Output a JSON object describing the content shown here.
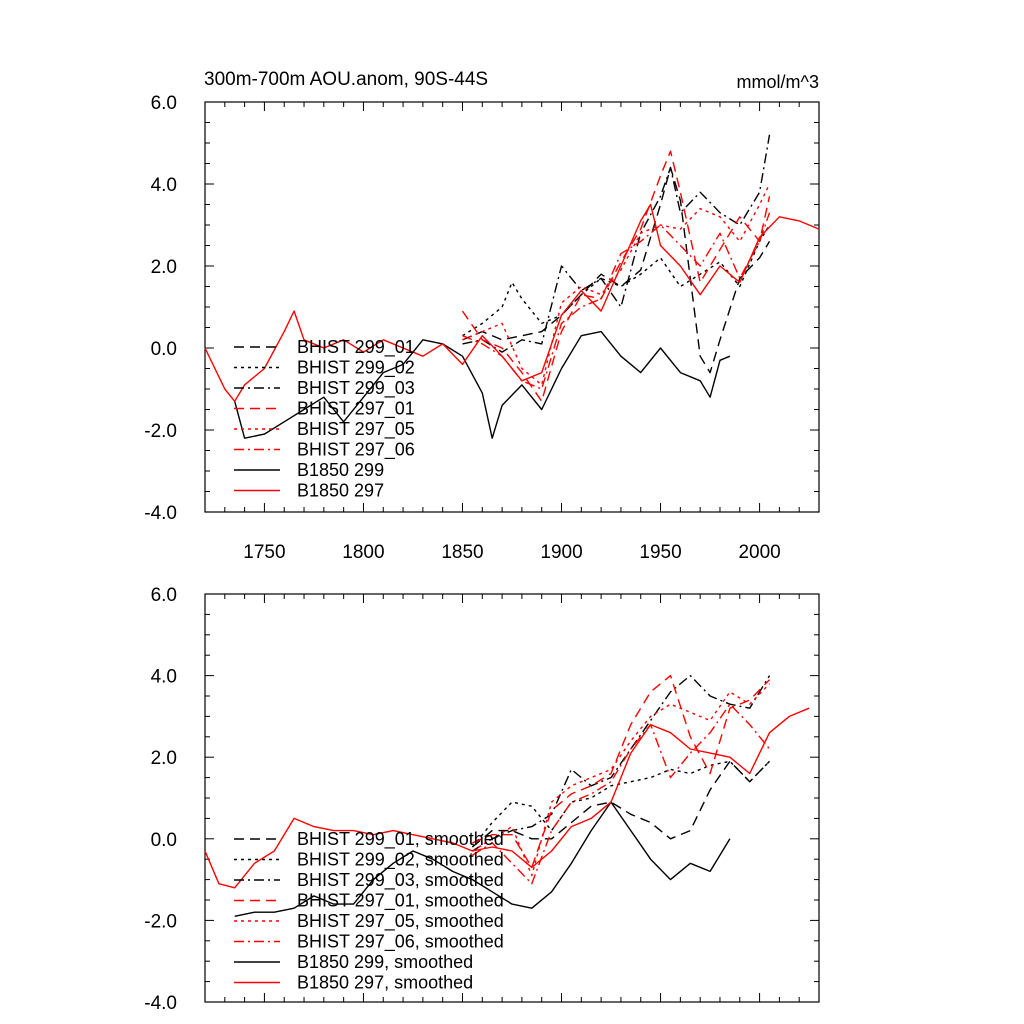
{
  "chart_data": [
    {
      "type": "line",
      "title": "300m-700m AOU.anom, 90S-44S",
      "units_label": "mmol/m^3",
      "xlim": [
        1720,
        2030
      ],
      "ylim": [
        -4,
        6
      ],
      "x_ticks": [
        1750,
        1800,
        1850,
        1900,
        1950,
        2000
      ],
      "x_tick_labels": [
        "1750",
        "1800",
        "1850",
        "1900",
        "1950",
        "2000"
      ],
      "y_ticks": [
        -4,
        -2,
        0,
        2,
        4,
        6
      ],
      "y_tick_labels": [
        "-4.0",
        "-2.0",
        "0.0",
        "2.0",
        "4.0",
        "6.0"
      ],
      "legend_position": "bottom-left",
      "grid": false,
      "series": [
        {
          "name": "BHIST 299_01",
          "color": "#000000",
          "dash": "long-dash",
          "x": [
            1850,
            1860,
            1870,
            1880,
            1890,
            1900,
            1910,
            1920,
            1930,
            1940,
            1950,
            1955,
            1960,
            1970,
            1975,
            1980,
            1990,
            2000,
            2005
          ],
          "y": [
            0.2,
            0.4,
            0.2,
            0.3,
            0.4,
            0.8,
            1.3,
            1.8,
            1.5,
            1.9,
            3.5,
            4.4,
            3.6,
            -0.2,
            -0.6,
            0.2,
            1.7,
            2.2,
            2.6
          ]
        },
        {
          "name": "BHIST 299_02",
          "color": "#000000",
          "dash": "dot",
          "x": [
            1850,
            1860,
            1870,
            1875,
            1880,
            1890,
            1900,
            1910,
            1920,
            1930,
            1940,
            1950,
            1960,
            1970,
            1980,
            1990,
            2000,
            2005
          ],
          "y": [
            0.3,
            0.6,
            1.0,
            1.6,
            1.2,
            0.6,
            0.8,
            1.3,
            1.7,
            1.5,
            1.8,
            2.2,
            1.5,
            1.8,
            2.1,
            1.5,
            2.6,
            3.0
          ]
        },
        {
          "name": "BHIST 299_03",
          "color": "#000000",
          "dash": "dash-dot",
          "x": [
            1850,
            1860,
            1870,
            1880,
            1890,
            1900,
            1910,
            1920,
            1930,
            1940,
            1950,
            1955,
            1960,
            1970,
            1980,
            1990,
            2000,
            2005
          ],
          "y": [
            0.1,
            0.2,
            -0.1,
            0.2,
            0.1,
            2.0,
            1.4,
            1.7,
            1.0,
            2.8,
            3.7,
            4.4,
            3.3,
            3.8,
            3.3,
            3.0,
            3.8,
            5.2
          ]
        },
        {
          "name": "BHIST 297_01",
          "color": "#ff0000",
          "dash": "long-dash",
          "x": [
            1850,
            1860,
            1870,
            1880,
            1890,
            1900,
            1910,
            1920,
            1930,
            1940,
            1950,
            1955,
            1960,
            1970,
            1980,
            1990,
            2000,
            2005
          ],
          "y": [
            0.9,
            0.2,
            0.0,
            -0.6,
            -1.3,
            0.4,
            1.3,
            1.2,
            2.1,
            2.9,
            4.2,
            4.8,
            3.8,
            1.6,
            2.4,
            3.2,
            2.6,
            3.7
          ]
        },
        {
          "name": "BHIST 297_05",
          "color": "#ff0000",
          "dash": "dot",
          "x": [
            1850,
            1860,
            1870,
            1880,
            1890,
            1900,
            1910,
            1920,
            1930,
            1940,
            1950,
            1960,
            1970,
            1980,
            1990,
            2000,
            2005
          ],
          "y": [
            0.2,
            0.4,
            0.6,
            -0.5,
            -0.9,
            1.1,
            1.5,
            1.3,
            1.9,
            2.8,
            3.0,
            2.9,
            3.4,
            3.2,
            2.6,
            3.5,
            4.0
          ]
        },
        {
          "name": "BHIST 297_06",
          "color": "#ff0000",
          "dash": "dash-dot",
          "x": [
            1850,
            1860,
            1870,
            1880,
            1890,
            1900,
            1910,
            1920,
            1930,
            1940,
            1950,
            1960,
            1970,
            1980,
            1990,
            2000,
            2005
          ],
          "y": [
            0.3,
            0.1,
            -0.2,
            -0.8,
            -1.0,
            0.6,
            1.0,
            1.2,
            2.3,
            2.6,
            3.0,
            2.5,
            2.0,
            2.8,
            1.7,
            2.6,
            3.3
          ]
        },
        {
          "name": "B1850 299",
          "color": "#000000",
          "dash": "solid",
          "x": [
            1735,
            1740,
            1750,
            1760,
            1770,
            1780,
            1790,
            1800,
            1810,
            1820,
            1830,
            1840,
            1850,
            1860,
            1865,
            1870,
            1880,
            1890,
            1900,
            1910,
            1920,
            1930,
            1940,
            1950,
            1960,
            1970,
            1975,
            1980,
            1985
          ],
          "y": [
            -1.3,
            -2.2,
            -2.1,
            -1.8,
            -1.5,
            -1.2,
            -1.8,
            -1.2,
            -0.6,
            -0.4,
            0.2,
            0.1,
            -0.2,
            -1.1,
            -2.2,
            -1.4,
            -0.9,
            -1.5,
            -0.5,
            0.3,
            0.4,
            -0.2,
            -0.6,
            0.0,
            -0.6,
            -0.8,
            -1.2,
            -0.3,
            -0.2
          ]
        },
        {
          "name": "B1850 297",
          "color": "#ff0000",
          "dash": "solid",
          "x": [
            1720,
            1730,
            1735,
            1740,
            1750,
            1760,
            1765,
            1770,
            1780,
            1790,
            1800,
            1810,
            1820,
            1830,
            1840,
            1850,
            1860,
            1870,
            1880,
            1890,
            1900,
            1910,
            1920,
            1930,
            1940,
            1945,
            1950,
            1960,
            1970,
            1980,
            1990,
            2000,
            2010,
            2020,
            2030
          ],
          "y": [
            0.0,
            -1.0,
            -1.3,
            -0.9,
            -0.5,
            0.4,
            0.9,
            0.2,
            0.0,
            0.2,
            -0.1,
            0.2,
            0.0,
            -0.2,
            0.1,
            -0.4,
            0.3,
            -0.2,
            -0.8,
            -0.6,
            0.8,
            1.4,
            0.9,
            2.0,
            3.1,
            3.5,
            2.5,
            2.0,
            1.3,
            2.0,
            1.6,
            2.7,
            3.2,
            3.1,
            2.9
          ]
        }
      ]
    },
    {
      "type": "line",
      "xlim": [
        1720,
        2030
      ],
      "ylim": [
        -4,
        6
      ],
      "y_ticks": [
        -4,
        -2,
        0,
        2,
        4,
        6
      ],
      "y_tick_labels": [
        "-4.0",
        "-2.0",
        "0.0",
        "2.0",
        "4.0",
        "6.0"
      ],
      "legend_position": "bottom-left",
      "grid": false,
      "series": [
        {
          "name": "BHIST 299_01, smoothed",
          "color": "#000000",
          "dash": "long-dash",
          "x": [
            1855,
            1865,
            1875,
            1885,
            1895,
            1905,
            1915,
            1925,
            1935,
            1945,
            1955,
            1965,
            1975,
            1985,
            1995,
            2005
          ],
          "y": [
            -0.2,
            0.2,
            0.2,
            0.0,
            0.0,
            0.4,
            0.8,
            0.9,
            0.6,
            0.4,
            0.0,
            0.2,
            1.2,
            1.9,
            1.4,
            1.9
          ]
        },
        {
          "name": "BHIST 299_02, smoothed",
          "color": "#000000",
          "dash": "dot",
          "x": [
            1855,
            1865,
            1875,
            1885,
            1895,
            1905,
            1915,
            1925,
            1935,
            1945,
            1955,
            1965,
            1975,
            1985,
            1995,
            2005
          ],
          "y": [
            -0.2,
            0.4,
            0.9,
            0.8,
            0.2,
            0.9,
            1.0,
            1.3,
            1.4,
            1.5,
            1.7,
            1.6,
            1.8,
            1.9,
            1.4,
            1.9
          ]
        },
        {
          "name": "BHIST 299_03, smoothed",
          "color": "#000000",
          "dash": "dash-dot",
          "x": [
            1855,
            1865,
            1875,
            1885,
            1895,
            1905,
            1915,
            1925,
            1935,
            1945,
            1955,
            1965,
            1975,
            1985,
            1995,
            2005
          ],
          "y": [
            -0.3,
            0.0,
            0.2,
            0.3,
            0.6,
            1.7,
            1.3,
            1.5,
            2.2,
            2.9,
            3.6,
            4.0,
            3.5,
            3.3,
            3.2,
            4.0
          ]
        },
        {
          "name": "BHIST 297_01, smoothed",
          "color": "#ff0000",
          "dash": "long-dash",
          "x": [
            1855,
            1865,
            1875,
            1885,
            1895,
            1905,
            1915,
            1925,
            1935,
            1945,
            1955,
            1965,
            1975,
            1985,
            1995,
            2005
          ],
          "y": [
            -0.1,
            0.1,
            0.1,
            -0.7,
            0.7,
            1.1,
            1.3,
            1.6,
            2.8,
            3.6,
            4.0,
            2.5,
            1.6,
            3.2,
            3.4,
            3.9
          ]
        },
        {
          "name": "BHIST 297_05, smoothed",
          "color": "#ff0000",
          "dash": "dot",
          "x": [
            1855,
            1865,
            1875,
            1885,
            1895,
            1905,
            1915,
            1925,
            1935,
            1945,
            1955,
            1965,
            1975,
            1985,
            1995,
            2005
          ],
          "y": [
            -0.3,
            0.0,
            0.3,
            -0.9,
            0.9,
            1.3,
            1.5,
            1.7,
            2.4,
            3.0,
            3.3,
            3.1,
            2.9,
            3.6,
            3.3,
            3.8
          ]
        },
        {
          "name": "BHIST 297_06, smoothed",
          "color": "#ff0000",
          "dash": "dash-dot",
          "x": [
            1855,
            1865,
            1875,
            1885,
            1895,
            1905,
            1915,
            1925,
            1935,
            1945,
            1955,
            1965,
            1975,
            1985,
            1995,
            2005
          ],
          "y": [
            -0.4,
            -0.1,
            -0.6,
            -1.1,
            0.2,
            0.9,
            1.1,
            1.4,
            2.2,
            2.8,
            1.5,
            2.1,
            2.6,
            3.3,
            2.8,
            2.2
          ]
        },
        {
          "name": "B1850 299, smoothed",
          "color": "#000000",
          "dash": "solid",
          "x": [
            1735,
            1745,
            1755,
            1765,
            1775,
            1785,
            1795,
            1805,
            1815,
            1825,
            1835,
            1845,
            1855,
            1865,
            1875,
            1885,
            1895,
            1905,
            1915,
            1925,
            1935,
            1945,
            1955,
            1965,
            1975,
            1985
          ],
          "y": [
            -1.9,
            -1.8,
            -1.8,
            -1.7,
            -1.4,
            -1.6,
            -1.6,
            -1.0,
            -0.6,
            -0.3,
            -0.5,
            -0.8,
            -1.0,
            -1.3,
            -1.6,
            -1.7,
            -1.3,
            -0.6,
            0.2,
            0.9,
            0.2,
            -0.5,
            -1.0,
            -0.6,
            -0.8,
            0.0
          ]
        },
        {
          "name": "B1850 297, smoothed",
          "color": "#ff0000",
          "dash": "solid",
          "x": [
            1720,
            1727,
            1735,
            1745,
            1755,
            1765,
            1775,
            1785,
            1795,
            1805,
            1815,
            1825,
            1835,
            1845,
            1855,
            1865,
            1875,
            1885,
            1895,
            1905,
            1915,
            1925,
            1935,
            1945,
            1955,
            1965,
            1975,
            1985,
            1995,
            2005,
            2015,
            2025
          ],
          "y": [
            -0.3,
            -1.1,
            -1.2,
            -0.6,
            -0.3,
            0.5,
            0.3,
            0.2,
            0.2,
            0.1,
            0.2,
            0.1,
            0.0,
            -0.1,
            -0.3,
            -0.2,
            -0.3,
            -0.7,
            -0.3,
            0.3,
            0.5,
            0.9,
            2.1,
            2.8,
            2.6,
            2.2,
            2.1,
            2.0,
            1.6,
            2.6,
            3.0,
            3.2
          ]
        }
      ]
    }
  ]
}
